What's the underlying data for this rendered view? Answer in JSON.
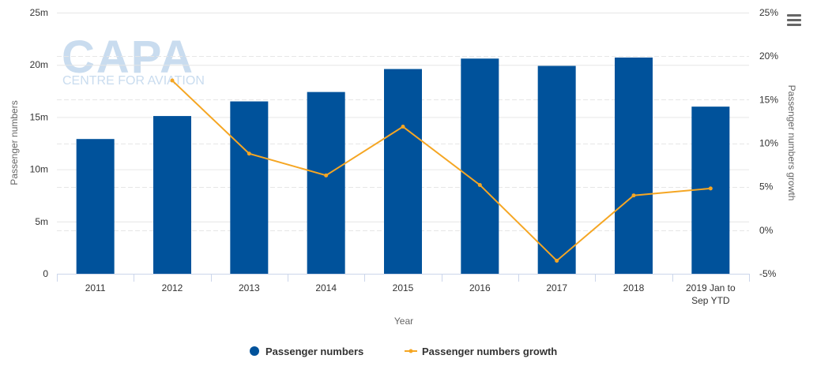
{
  "watermark": {
    "logo_text": "CAPA",
    "logo_subtext": "CENTRE FOR AVIATION"
  },
  "menu": {
    "icon": "hamburger-menu-icon"
  },
  "chart_data": {
    "type": "bar",
    "categories": [
      "2011",
      "2012",
      "2013",
      "2014",
      "2015",
      "2016",
      "2017",
      "2018",
      "2019 Jan to Sep YTD"
    ],
    "category_labels": [
      [
        "2011"
      ],
      [
        "2012"
      ],
      [
        "2013"
      ],
      [
        "2014"
      ],
      [
        "2015"
      ],
      [
        "2016"
      ],
      [
        "2017"
      ],
      [
        "2018"
      ],
      [
        "2019 Jan to",
        "Sep YTD"
      ]
    ],
    "xlabel": "Year",
    "y_left": {
      "label": "Passenger numbers",
      "min": 0,
      "max": 25,
      "ticks": [
        0,
        5,
        10,
        15,
        20,
        25
      ],
      "tick_labels": [
        "0",
        "5m",
        "10m",
        "15m",
        "20m",
        "25m"
      ]
    },
    "y_right": {
      "label": "Passenger numbers growth",
      "min": -5,
      "max": 25,
      "ticks": [
        -5,
        0,
        5,
        10,
        15,
        20,
        25
      ],
      "tick_labels": [
        "-5%",
        "0%",
        "5%",
        "10%",
        "15%",
        "20%",
        "25%"
      ]
    },
    "series": [
      {
        "name": "Passenger numbers",
        "type": "bar",
        "axis": "left",
        "color": "#00529b",
        "values": [
          12.9,
          15.1,
          16.5,
          17.4,
          19.6,
          20.6,
          19.9,
          20.7,
          16.0
        ]
      },
      {
        "name": "Passenger numbers growth",
        "type": "line",
        "axis": "right",
        "color": "#f5a623",
        "values": [
          null,
          17.2,
          8.8,
          6.3,
          11.9,
          5.2,
          -3.5,
          4.0,
          4.8
        ]
      }
    ],
    "legend_position": "bottom-center",
    "grid": true
  }
}
